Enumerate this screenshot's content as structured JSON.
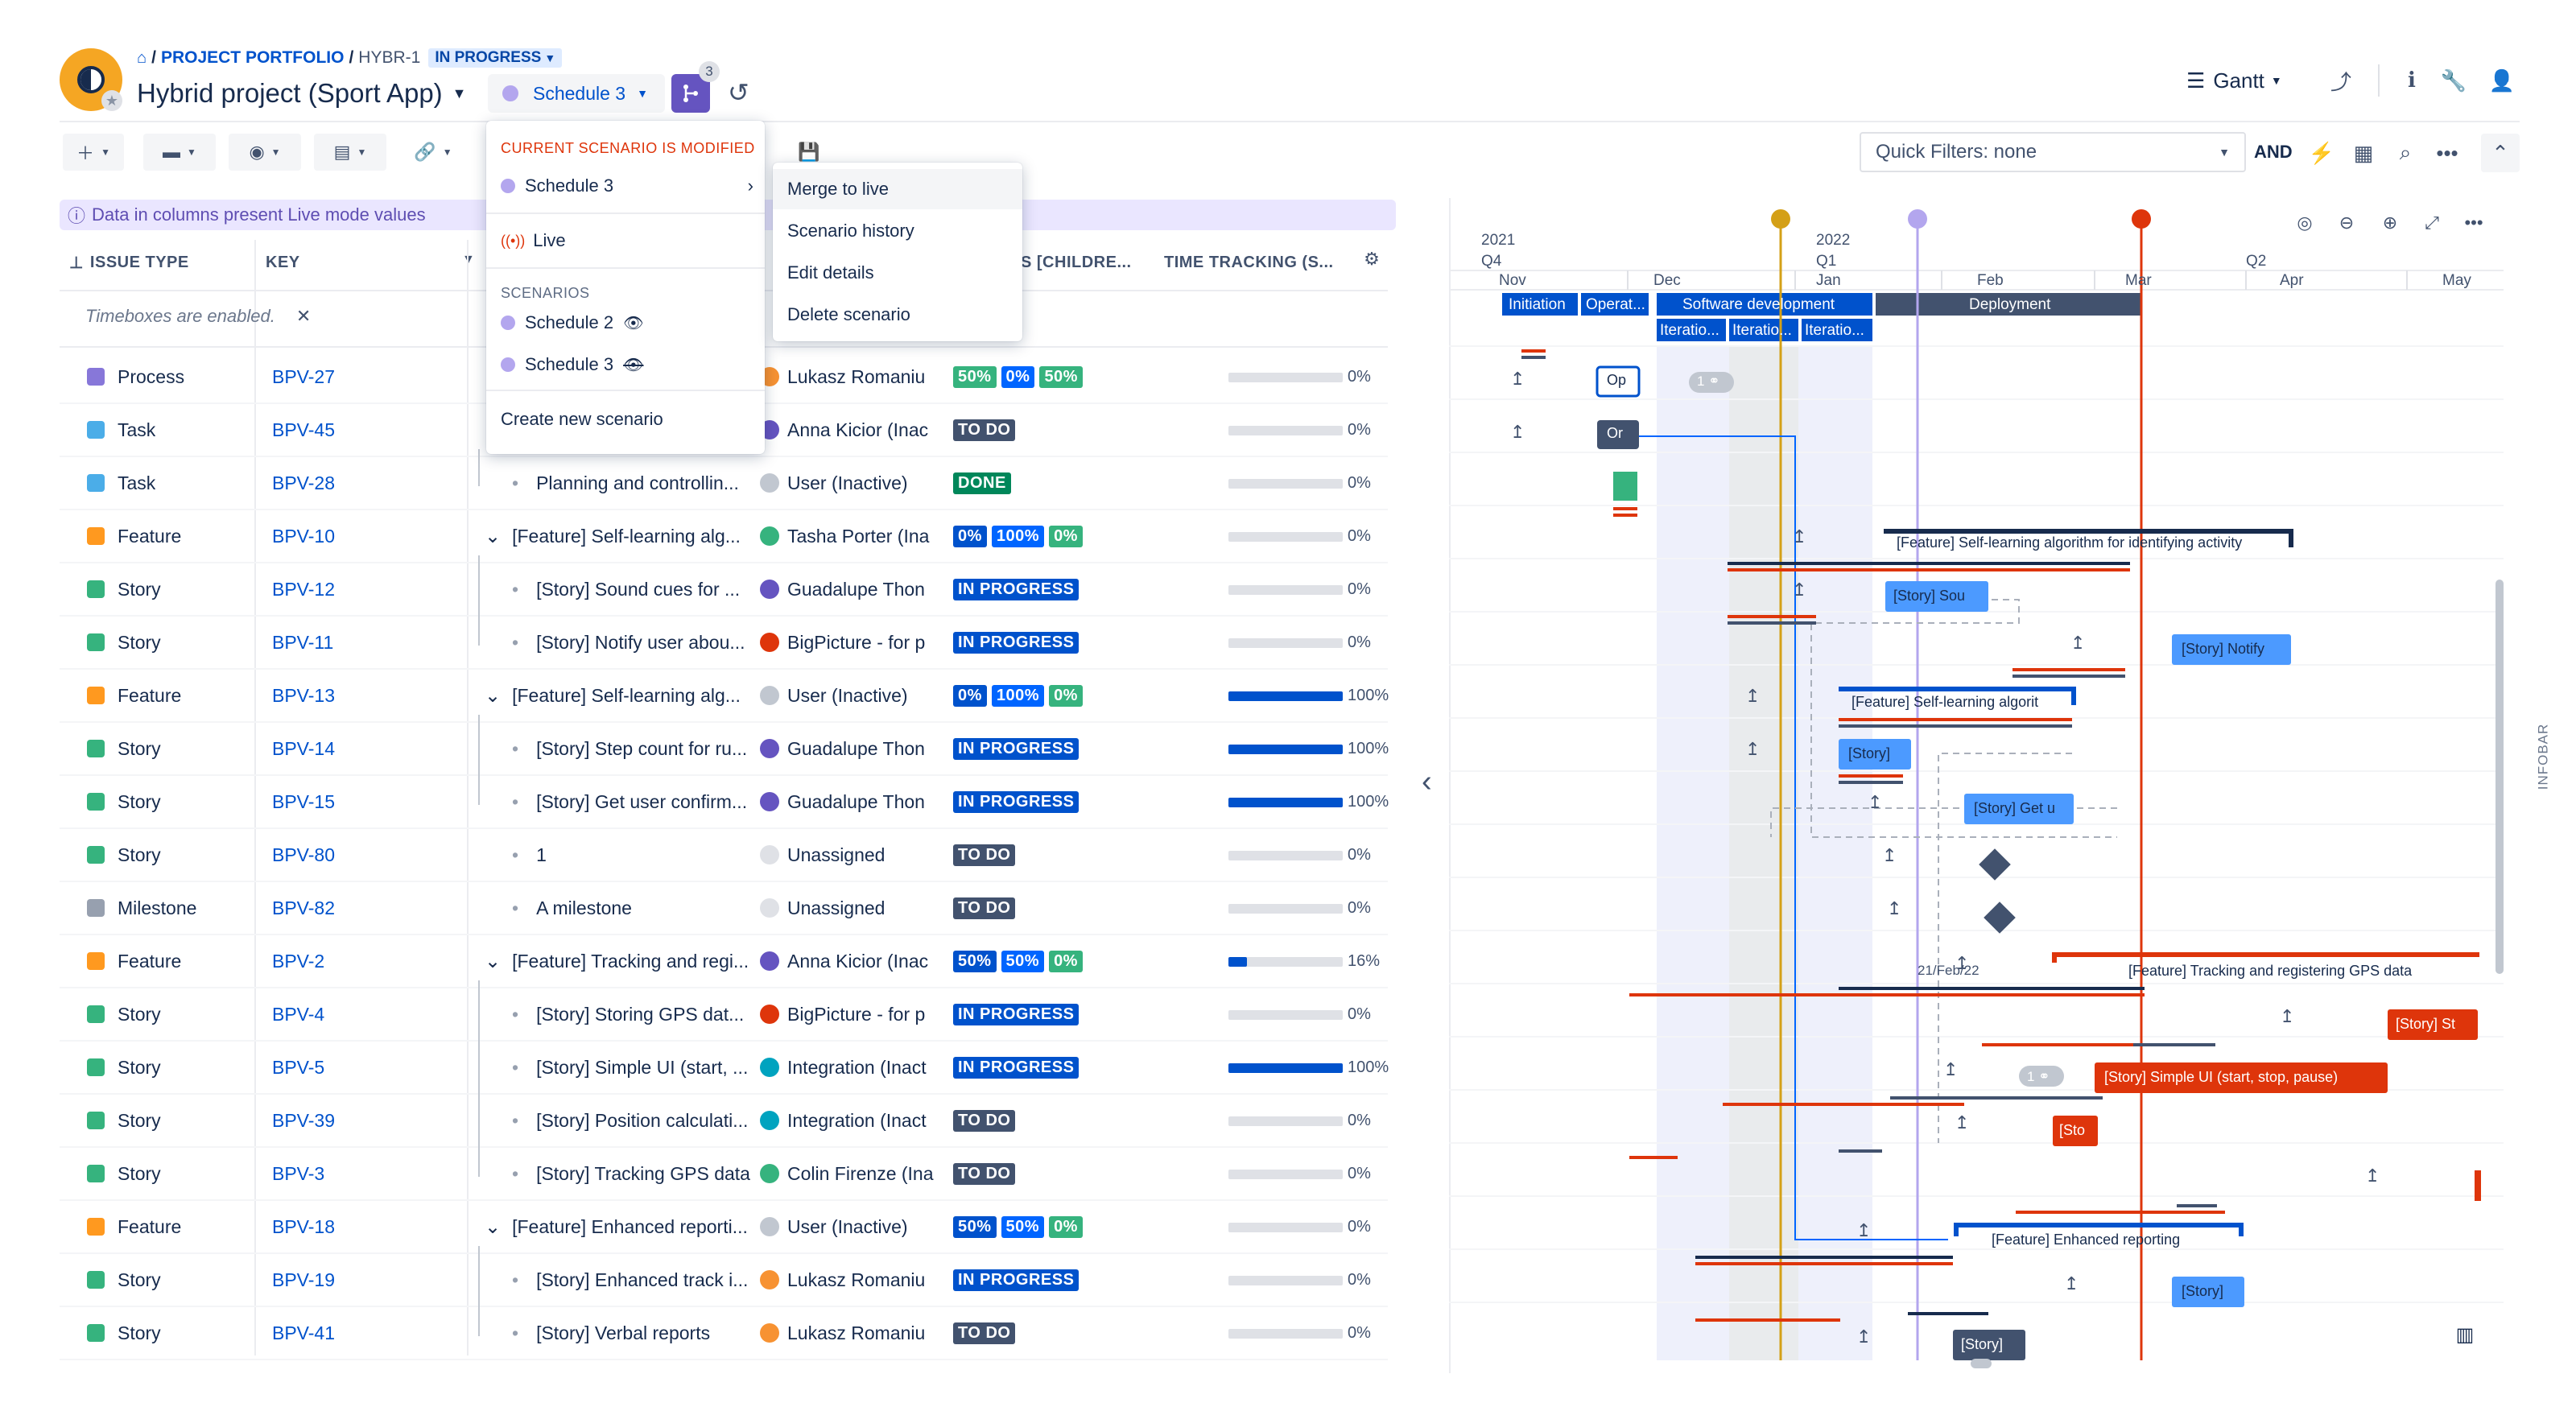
{
  "header": {
    "breadcrumb": {
      "root": "PROJECT PORTFOLIO",
      "key": "HYBR-1",
      "status": "IN PROGRESS"
    },
    "project_title": "Hybrid project (Sport App)",
    "scenario": "Schedule 3",
    "scenario_badge": "3",
    "view": "Gantt"
  },
  "toolbar": {
    "quick_filters": "Quick Filters: none",
    "and_label": "AND"
  },
  "info_banner": "Data in columns present Live mode values",
  "columns": {
    "issue_type": "ISSUE TYPE",
    "key": "KEY",
    "progress": "S [CHILDRE...",
    "time_tracking": "TIME TRACKING (S..."
  },
  "timeboxes_notice": "Timeboxes are enabled.",
  "rows": [
    {
      "type": "Process",
      "color": "#8777d9",
      "key": "BPV-27",
      "summary": "",
      "assignee": "Lukasz Romaniu",
      "av": "#f79232",
      "lz": [
        [
          "50%",
          "#36b37e"
        ],
        [
          "0%",
          "#0065ff"
        ],
        [
          "50%",
          "#36b37e"
        ]
      ],
      "status": null,
      "tt": 0,
      "ttl": "0%"
    },
    {
      "type": "Task",
      "color": "#4bade8",
      "key": "BPV-45",
      "summary": "",
      "assignee": "Anna Kicior (Inac",
      "av": "#6554c0",
      "lz": [],
      "status": [
        "TO DO",
        "#42526e"
      ],
      "tt": 0,
      "ttl": "0%"
    },
    {
      "type": "Task",
      "color": "#4bade8",
      "key": "BPV-28",
      "summary": "Planning and controllin...",
      "assignee": "User (Inactive)",
      "av": "#c1c7d0",
      "lz": [],
      "status": [
        "DONE",
        "#00875a"
      ],
      "tt": 0,
      "ttl": "0%"
    },
    {
      "type": "Feature",
      "color": "#ff991f",
      "key": "BPV-10",
      "summary": "[Feature] Self-learning alg...",
      "assignee": "Tasha Porter (Ina",
      "av": "#36b37e",
      "lz": [
        [
          "0%",
          "#0052cc"
        ],
        [
          "100%",
          "#0065ff"
        ],
        [
          "0%",
          "#36b37e"
        ]
      ],
      "status": null,
      "tt": 0,
      "ttl": "0%"
    },
    {
      "type": "Story",
      "color": "#36b37e",
      "key": "BPV-12",
      "summary": "[Story] Sound cues for ...",
      "assignee": "Guadalupe Thon",
      "av": "#6554c0",
      "lz": [],
      "status": [
        "IN PROGRESS",
        "#0052cc"
      ],
      "tt": 0,
      "ttl": "0%"
    },
    {
      "type": "Story",
      "color": "#36b37e",
      "key": "BPV-11",
      "summary": "[Story] Notify user abou...",
      "assignee": "BigPicture - for p",
      "av": "#de350b",
      "lz": [],
      "status": [
        "IN PROGRESS",
        "#0052cc"
      ],
      "tt": 0,
      "ttl": "0%"
    },
    {
      "type": "Feature",
      "color": "#ff991f",
      "key": "BPV-13",
      "summary": "[Feature] Self-learning alg...",
      "assignee": "User (Inactive)",
      "av": "#c1c7d0",
      "lz": [
        [
          "0%",
          "#0052cc"
        ],
        [
          "100%",
          "#0065ff"
        ],
        [
          "0%",
          "#36b37e"
        ]
      ],
      "status": null,
      "tt": 1,
      "ttl": "100%"
    },
    {
      "type": "Story",
      "color": "#36b37e",
      "key": "BPV-14",
      "summary": "[Story] Step count for ru...",
      "assignee": "Guadalupe Thon",
      "av": "#6554c0",
      "lz": [],
      "status": [
        "IN PROGRESS",
        "#0052cc"
      ],
      "tt": 1,
      "ttl": "100%"
    },
    {
      "type": "Story",
      "color": "#36b37e",
      "key": "BPV-15",
      "summary": "[Story] Get user confirm...",
      "assignee": "Guadalupe Thon",
      "av": "#6554c0",
      "lz": [],
      "status": [
        "IN PROGRESS",
        "#0052cc"
      ],
      "tt": 1,
      "ttl": "100%"
    },
    {
      "type": "Story",
      "color": "#36b37e",
      "key": "BPV-80",
      "summary": "1",
      "assignee": "Unassigned",
      "av": "#dfe1e6",
      "lz": [],
      "status": [
        "TO DO",
        "#42526e"
      ],
      "tt": 0,
      "ttl": "0%"
    },
    {
      "type": "Milestone",
      "color": "#97a0af",
      "key": "BPV-82",
      "summary": "A milestone",
      "assignee": "Unassigned",
      "av": "#dfe1e6",
      "lz": [],
      "status": [
        "TO DO",
        "#42526e"
      ],
      "tt": 0,
      "ttl": "0%"
    },
    {
      "type": "Feature",
      "color": "#ff991f",
      "key": "BPV-2",
      "summary": "[Feature] Tracking and regi...",
      "assignee": "Anna Kicior (Inac",
      "av": "#6554c0",
      "lz": [
        [
          "50%",
          "#0052cc"
        ],
        [
          "50%",
          "#0065ff"
        ],
        [
          "0%",
          "#36b37e"
        ]
      ],
      "status": null,
      "tt": 0.16,
      "ttl": "16%"
    },
    {
      "type": "Story",
      "color": "#36b37e",
      "key": "BPV-4",
      "summary": "[Story] Storing GPS dat...",
      "assignee": "BigPicture - for p",
      "av": "#de350b",
      "lz": [],
      "status": [
        "IN PROGRESS",
        "#0052cc"
      ],
      "tt": 0,
      "ttl": "0%"
    },
    {
      "type": "Story",
      "color": "#36b37e",
      "key": "BPV-5",
      "summary": "[Story] Simple UI (start, ...",
      "assignee": "Integration (Inact",
      "av": "#00a3bf",
      "lz": [],
      "status": [
        "IN PROGRESS",
        "#0052cc"
      ],
      "tt": 1,
      "ttl": "100%"
    },
    {
      "type": "Story",
      "color": "#36b37e",
      "key": "BPV-39",
      "summary": "[Story] Position calculati...",
      "assignee": "Integration (Inact",
      "av": "#00a3bf",
      "lz": [],
      "status": [
        "TO DO",
        "#42526e"
      ],
      "tt": 0,
      "ttl": "0%"
    },
    {
      "type": "Story",
      "color": "#36b37e",
      "key": "BPV-3",
      "summary": "[Story] Tracking GPS data",
      "assignee": "Colin Firenze (Ina",
      "av": "#36b37e",
      "lz": [],
      "status": [
        "TO DO",
        "#42526e"
      ],
      "tt": 0,
      "ttl": "0%"
    },
    {
      "type": "Feature",
      "color": "#ff991f",
      "key": "BPV-18",
      "summary": "[Feature] Enhanced reporti...",
      "assignee": "User (Inactive)",
      "av": "#c1c7d0",
      "lz": [
        [
          "50%",
          "#0052cc"
        ],
        [
          "50%",
          "#0065ff"
        ],
        [
          "0%",
          "#36b37e"
        ]
      ],
      "status": null,
      "tt": 0,
      "ttl": "0%"
    },
    {
      "type": "Story",
      "color": "#36b37e",
      "key": "BPV-19",
      "summary": "[Story] Enhanced track i...",
      "assignee": "Lukasz Romaniu",
      "av": "#f79232",
      "lz": [],
      "status": [
        "IN PROGRESS",
        "#0052cc"
      ],
      "tt": 0,
      "ttl": "0%"
    },
    {
      "type": "Story",
      "color": "#36b37e",
      "key": "BPV-41",
      "summary": "[Story] Verbal reports",
      "assignee": "Lukasz Romaniu",
      "av": "#f79232",
      "lz": [],
      "status": [
        "TO DO",
        "#42526e"
      ],
      "tt": 0,
      "ttl": "0%"
    }
  ],
  "scenario_menu": {
    "modified_header": "CURRENT SCENARIO IS MODIFIED",
    "current": "Schedule 3",
    "live": "Live",
    "scenarios_header": "SCENARIOS",
    "scenarios": [
      "Schedule 2",
      "Schedule 3"
    ],
    "create": "Create new scenario"
  },
  "submenu": [
    "Merge to live",
    "Scenario history",
    "Edit details",
    "Delete scenario"
  ],
  "gantt": {
    "years": [
      "2021",
      "2022"
    ],
    "quarters": [
      "Q4",
      "Q1",
      "Q2"
    ],
    "months": [
      "Nov",
      "Dec",
      "Jan",
      "Feb",
      "Mar",
      "Apr",
      "May"
    ],
    "phases": [
      "Initiation",
      "Operat...",
      "Software development",
      "Deployment"
    ],
    "iterations": [
      "Iteratio...",
      "Iteratio...",
      "Iteratio..."
    ],
    "bars": {
      "op1": "Op",
      "op2": "Or",
      "link_count": "1",
      "f10": "[Feature] Self-learning algorithm for identifying activity",
      "s12": "[Story] Sou",
      "s11": "[Story] Notify",
      "f13": "[Feature] Self-learning algorit",
      "s14": "[Story]",
      "s15": "[Story] Get u",
      "date_label": "21/Feb/22",
      "f2": "[Feature] Tracking and registering GPS data",
      "s4": "[Story] St",
      "link_count2": "1",
      "s5": "[Story] Simple UI (start, stop, pause)",
      "s39": "[Sto",
      "f18": "[Feature] Enhanced reporting",
      "s19": "[Story]",
      "s41": "[Story]"
    },
    "infobar": "INFOBAR"
  },
  "colors": {
    "accent": "#0052cc",
    "scenario": "#6554c0",
    "late": "#de350b",
    "today": "#d4a017"
  }
}
